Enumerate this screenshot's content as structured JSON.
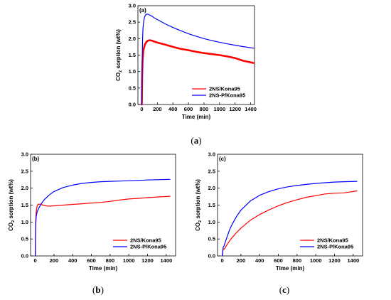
{
  "chart_data": [
    {
      "type": "line",
      "panel_label": "(a)",
      "caption": "(a)",
      "xlabel": "Time (min)",
      "ylabel": "CO2 sorption (wt%)",
      "xlim": [
        -50,
        1450
      ],
      "ylim": [
        0,
        3.0
      ],
      "xticks": [
        "0",
        "200",
        "400",
        "600",
        "800",
        "1000",
        "1200",
        "1400"
      ],
      "yticks": [
        "0.0",
        "0.5",
        "1.0",
        "1.5",
        "2.0",
        "2.5",
        "3.0"
      ],
      "legend": "bottom-right",
      "grid": false,
      "series": [
        {
          "name": "2NS/Kona95",
          "color": "#ff0000",
          "width": 2.6,
          "x": [
            0,
            5,
            10,
            20,
            40,
            60,
            80,
            100,
            130,
            160,
            200,
            300,
            400,
            500,
            600,
            700,
            800,
            900,
            1000,
            1100,
            1200,
            1300,
            1440
          ],
          "y": [
            0.0,
            0.9,
            1.35,
            1.65,
            1.82,
            1.9,
            1.94,
            1.95,
            1.94,
            1.91,
            1.88,
            1.82,
            1.75,
            1.69,
            1.65,
            1.6,
            1.56,
            1.53,
            1.5,
            1.46,
            1.41,
            1.33,
            1.26
          ]
        },
        {
          "name": "2NS-P/Kona95",
          "color": "#0000ff",
          "width": 1.2,
          "x": [
            0,
            5,
            10,
            15,
            20,
            30,
            40,
            50,
            60,
            80,
            100,
            130,
            160,
            200,
            300,
            400,
            500,
            600,
            700,
            800,
            900,
            1000,
            1100,
            1200,
            1300,
            1440
          ],
          "y": [
            0.0,
            1.3,
            2.0,
            2.3,
            2.45,
            2.6,
            2.68,
            2.72,
            2.74,
            2.74,
            2.72,
            2.68,
            2.63,
            2.58,
            2.45,
            2.34,
            2.24,
            2.15,
            2.07,
            2.0,
            1.94,
            1.89,
            1.84,
            1.8,
            1.76,
            1.71
          ]
        }
      ]
    },
    {
      "type": "line",
      "panel_label": "(b)",
      "caption": "(b)",
      "xlabel": "Time (min)",
      "ylabel": "CO2 sorption (wt%)",
      "xlim": [
        -50,
        1500
      ],
      "ylim": [
        0,
        3.0
      ],
      "xticks": [
        "0",
        "200",
        "400",
        "600",
        "800",
        "1000",
        "1200",
        "1400"
      ],
      "yticks": [
        "0.0",
        "0.5",
        "1.0",
        "1.5",
        "2.0",
        "2.5",
        "3.0"
      ],
      "legend": "bottom-right",
      "grid": false,
      "series": [
        {
          "name": "2NS/Kona95",
          "color": "#ff0000",
          "width": 1.2,
          "x": [
            0,
            5,
            10,
            20,
            30,
            50,
            70,
            100,
            130,
            160,
            200,
            300,
            400,
            500,
            600,
            700,
            800,
            900,
            1000,
            1100,
            1200,
            1300,
            1440
          ],
          "y": [
            0.0,
            1.0,
            1.3,
            1.48,
            1.52,
            1.53,
            1.51,
            1.49,
            1.47,
            1.47,
            1.48,
            1.5,
            1.52,
            1.54,
            1.56,
            1.58,
            1.61,
            1.65,
            1.68,
            1.7,
            1.72,
            1.74,
            1.76
          ]
        },
        {
          "name": "2NS-P/Kona95",
          "color": "#0000ff",
          "width": 1.2,
          "x": [
            0,
            5,
            10,
            20,
            40,
            60,
            80,
            100,
            150,
            200,
            300,
            400,
            500,
            600,
            700,
            800,
            900,
            1000,
            1100,
            1200,
            1300,
            1440
          ],
          "y": [
            0.0,
            0.9,
            1.15,
            1.3,
            1.42,
            1.52,
            1.6,
            1.67,
            1.8,
            1.9,
            2.02,
            2.09,
            2.14,
            2.17,
            2.19,
            2.2,
            2.21,
            2.22,
            2.23,
            2.24,
            2.25,
            2.26
          ]
        }
      ]
    },
    {
      "type": "line",
      "panel_label": "(c)",
      "caption": "(c)",
      "xlabel": "Time (min)",
      "ylabel": "CO2 sorption (wt%)",
      "xlim": [
        -50,
        1500
      ],
      "ylim": [
        0,
        3.0
      ],
      "xticks": [
        "0",
        "200",
        "400",
        "600",
        "800",
        "1000",
        "1200",
        "1400"
      ],
      "yticks": [
        "0.0",
        "0.5",
        "1.0",
        "1.5",
        "2.0",
        "2.5",
        "3.0"
      ],
      "legend": "bottom-right",
      "grid": false,
      "series": [
        {
          "name": "2NS/Kona95",
          "color": "#ff0000",
          "width": 1.2,
          "x": [
            0,
            10,
            20,
            30,
            50,
            80,
            100,
            150,
            200,
            300,
            400,
            500,
            600,
            700,
            800,
            900,
            1000,
            1100,
            1200,
            1300,
            1400,
            1440
          ],
          "y": [
            0.0,
            0.2,
            0.2,
            0.23,
            0.33,
            0.45,
            0.52,
            0.68,
            0.82,
            1.05,
            1.22,
            1.36,
            1.48,
            1.58,
            1.66,
            1.73,
            1.78,
            1.83,
            1.85,
            1.86,
            1.9,
            1.92
          ]
        },
        {
          "name": "2NS-P/Kona95",
          "color": "#0000ff",
          "width": 1.2,
          "x": [
            0,
            10,
            20,
            30,
            50,
            80,
            100,
            150,
            200,
            300,
            400,
            500,
            600,
            700,
            800,
            900,
            1000,
            1100,
            1200,
            1300,
            1440
          ],
          "y": [
            0.0,
            0.25,
            0.3,
            0.38,
            0.55,
            0.78,
            0.9,
            1.15,
            1.35,
            1.62,
            1.79,
            1.9,
            1.98,
            2.04,
            2.08,
            2.11,
            2.14,
            2.16,
            2.18,
            2.19,
            2.2
          ]
        }
      ]
    }
  ]
}
